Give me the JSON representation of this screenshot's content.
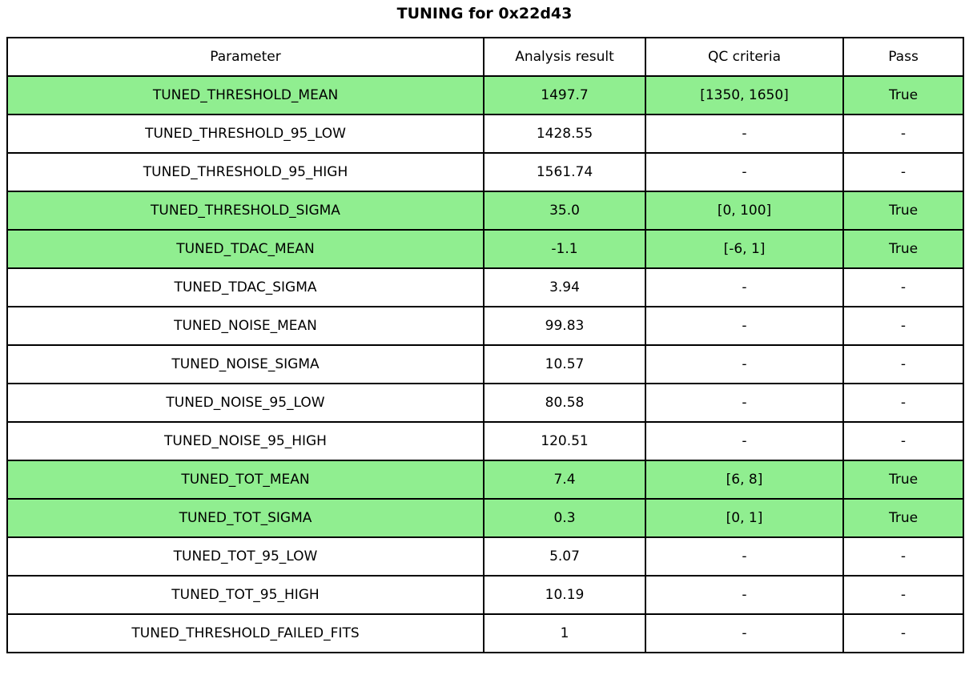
{
  "title": "TUNING for 0x22d43",
  "colors": {
    "pass_green": "#90EE90",
    "border": "#000000",
    "background": "#FFFFFF",
    "text": "#000000"
  },
  "chart_data": {
    "type": "table",
    "title": "TUNING for 0x22d43",
    "columns": [
      "Parameter",
      "Analysis result",
      "QC criteria",
      "Pass"
    ],
    "rows": [
      {
        "parameter": "TUNED_THRESHOLD_MEAN",
        "result": "1497.7",
        "criteria": "[1350, 1650]",
        "pass": "True",
        "highlight": true
      },
      {
        "parameter": "TUNED_THRESHOLD_95_LOW",
        "result": "1428.55",
        "criteria": "-",
        "pass": "-",
        "highlight": false
      },
      {
        "parameter": "TUNED_THRESHOLD_95_HIGH",
        "result": "1561.74",
        "criteria": "-",
        "pass": "-",
        "highlight": false
      },
      {
        "parameter": "TUNED_THRESHOLD_SIGMA",
        "result": "35.0",
        "criteria": "[0, 100]",
        "pass": "True",
        "highlight": true
      },
      {
        "parameter": "TUNED_TDAC_MEAN",
        "result": "-1.1",
        "criteria": "[-6, 1]",
        "pass": "True",
        "highlight": true
      },
      {
        "parameter": "TUNED_TDAC_SIGMA",
        "result": "3.94",
        "criteria": "-",
        "pass": "-",
        "highlight": false
      },
      {
        "parameter": "TUNED_NOISE_MEAN",
        "result": "99.83",
        "criteria": "-",
        "pass": "-",
        "highlight": false
      },
      {
        "parameter": "TUNED_NOISE_SIGMA",
        "result": "10.57",
        "criteria": "-",
        "pass": "-",
        "highlight": false
      },
      {
        "parameter": "TUNED_NOISE_95_LOW",
        "result": "80.58",
        "criteria": "-",
        "pass": "-",
        "highlight": false
      },
      {
        "parameter": "TUNED_NOISE_95_HIGH",
        "result": "120.51",
        "criteria": "-",
        "pass": "-",
        "highlight": false
      },
      {
        "parameter": "TUNED_TOT_MEAN",
        "result": "7.4",
        "criteria": "[6, 8]",
        "pass": "True",
        "highlight": true
      },
      {
        "parameter": "TUNED_TOT_SIGMA",
        "result": "0.3",
        "criteria": "[0, 1]",
        "pass": "True",
        "highlight": true
      },
      {
        "parameter": "TUNED_TOT_95_LOW",
        "result": "5.07",
        "criteria": "-",
        "pass": "-",
        "highlight": false
      },
      {
        "parameter": "TUNED_TOT_95_HIGH",
        "result": "10.19",
        "criteria": "-",
        "pass": "-",
        "highlight": false
      },
      {
        "parameter": "TUNED_THRESHOLD_FAILED_FITS",
        "result": "1",
        "criteria": "-",
        "pass": "-",
        "highlight": false
      }
    ]
  }
}
